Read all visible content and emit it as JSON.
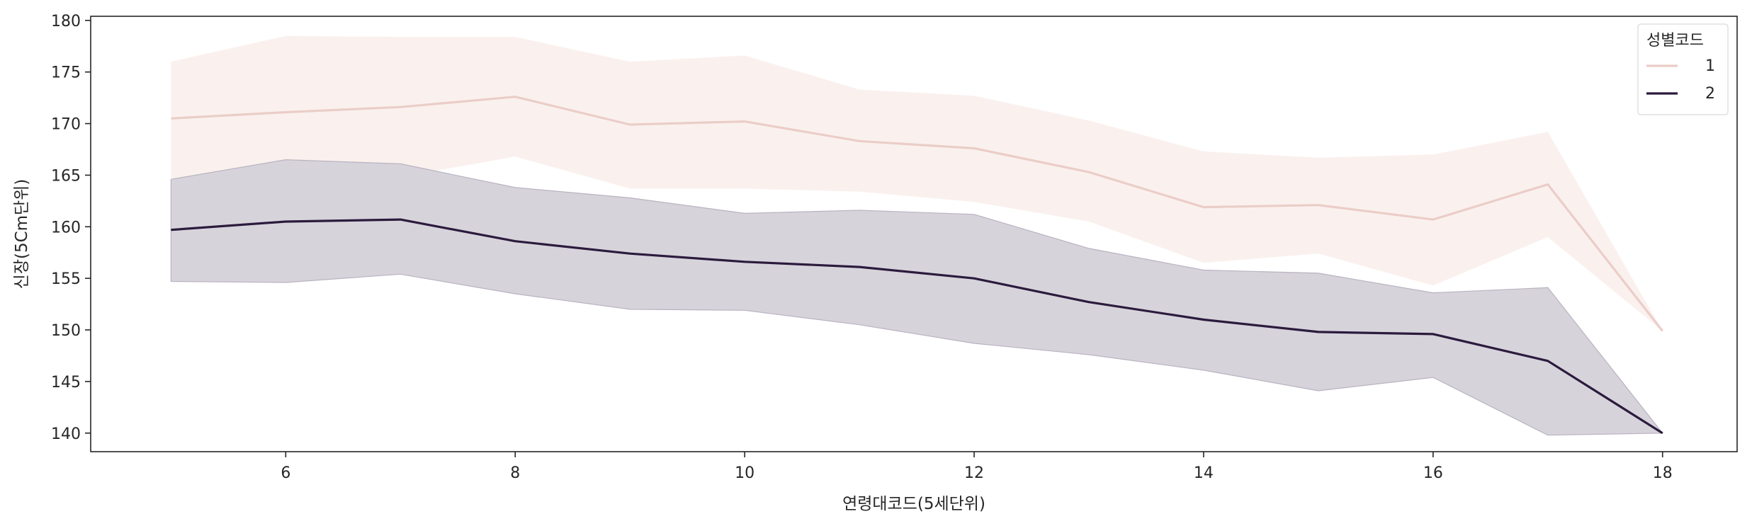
{
  "chart_data": {
    "type": "line",
    "xlabel": "연령대코드(5세단위)",
    "ylabel": "신장(5Cm단위)",
    "xlim": [
      4.3,
      18.65
    ],
    "ylim": [
      138.2,
      180.4
    ],
    "xticks": [
      6,
      8,
      10,
      12,
      14,
      16,
      18
    ],
    "yticks": [
      140,
      145,
      150,
      155,
      160,
      165,
      170,
      175,
      180
    ],
    "grid": false,
    "legend": {
      "title": "성별코드",
      "position": "top-right"
    },
    "series": [
      {
        "name": "1",
        "color": "#ebcdc8",
        "band_color": "#f8ece8",
        "x": [
          5,
          6,
          7,
          8,
          9,
          10,
          11,
          12,
          13,
          14,
          15,
          16,
          17,
          18
        ],
        "values": [
          170.5,
          171.1,
          171.6,
          172.6,
          169.9,
          170.2,
          168.3,
          167.6,
          165.3,
          161.9,
          162.1,
          160.7,
          164.1,
          149.9
        ],
        "lower": [
          164.7,
          163.7,
          164.8,
          166.8,
          163.7,
          163.7,
          163.4,
          162.4,
          160.5,
          156.5,
          157.4,
          154.3,
          159.0,
          149.9
        ],
        "upper": [
          176.0,
          178.5,
          178.4,
          178.4,
          176.0,
          176.6,
          173.3,
          172.7,
          170.3,
          167.3,
          166.7,
          167.0,
          169.2,
          149.9
        ]
      },
      {
        "name": "2",
        "color": "#2b1b3d",
        "band_color": "#d5d1d9",
        "x": [
          5,
          6,
          7,
          8,
          9,
          10,
          11,
          12,
          13,
          14,
          15,
          16,
          17,
          18
        ],
        "values": [
          159.7,
          160.5,
          160.7,
          158.6,
          157.4,
          156.6,
          156.1,
          155.0,
          152.7,
          151.0,
          149.8,
          149.6,
          147.0,
          140.0
        ],
        "lower": [
          154.7,
          154.6,
          155.4,
          153.5,
          152.0,
          151.9,
          150.5,
          148.7,
          147.6,
          146.1,
          144.1,
          145.4,
          139.8,
          140.0
        ],
        "upper": [
          164.6,
          166.5,
          166.1,
          163.8,
          162.8,
          161.3,
          161.6,
          161.2,
          157.9,
          155.8,
          155.5,
          153.6,
          154.1,
          140.0
        ]
      }
    ]
  }
}
